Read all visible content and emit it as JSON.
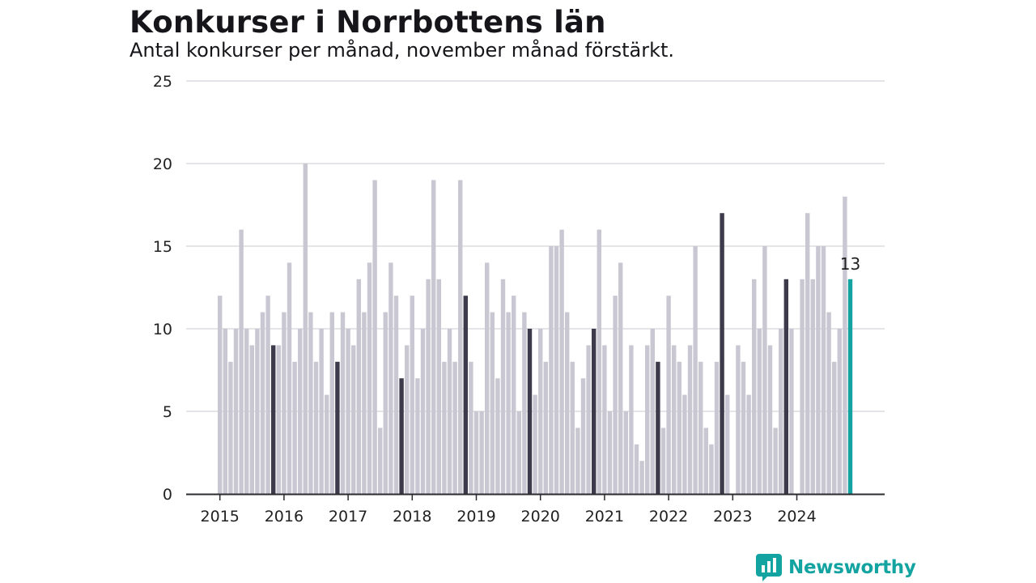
{
  "title": "Konkurser i Norrbottens län",
  "subtitle": "Antal konkurser per månad, november månad förstärkt.",
  "brand": {
    "name": "Newsworthy",
    "color": "#13a3a0"
  },
  "chart_data": {
    "type": "bar",
    "start": "2015-01",
    "x_ticks": [
      "2015",
      "2016",
      "2017",
      "2018",
      "2019",
      "2020",
      "2021",
      "2022",
      "2023",
      "2024"
    ],
    "y_ticks": [
      "0",
      "5",
      "10",
      "15",
      "20",
      "25"
    ],
    "ylim": [
      0,
      25
    ],
    "grid": true,
    "colors": {
      "default": "#c8c7d2",
      "highlight": "#3d3b4b",
      "latest": "#13a3a0"
    },
    "highlight_month": 11,
    "latest_label": "13",
    "values": [
      12,
      10,
      8,
      10,
      16,
      10,
      9,
      10,
      11,
      12,
      9,
      9,
      11,
      14,
      8,
      10,
      20,
      11,
      8,
      10,
      6,
      11,
      8,
      11,
      10,
      9,
      13,
      11,
      14,
      19,
      4,
      11,
      14,
      12,
      7,
      9,
      12,
      7,
      10,
      13,
      19,
      13,
      8,
      10,
      8,
      19,
      12,
      8,
      5,
      5,
      14,
      11,
      7,
      13,
      11,
      12,
      5,
      11,
      10,
      6,
      10,
      8,
      15,
      15,
      16,
      11,
      8,
      4,
      7,
      9,
      10,
      16,
      9,
      5,
      12,
      14,
      5,
      9,
      3,
      2,
      9,
      10,
      8,
      4,
      12,
      9,
      8,
      6,
      9,
      15,
      8,
      4,
      3,
      8,
      17,
      6,
      0,
      9,
      8,
      6,
      13,
      10,
      15,
      9,
      4,
      10,
      13,
      10,
      0,
      13,
      17,
      13,
      15,
      15,
      11,
      8,
      10,
      18,
      13
    ]
  }
}
